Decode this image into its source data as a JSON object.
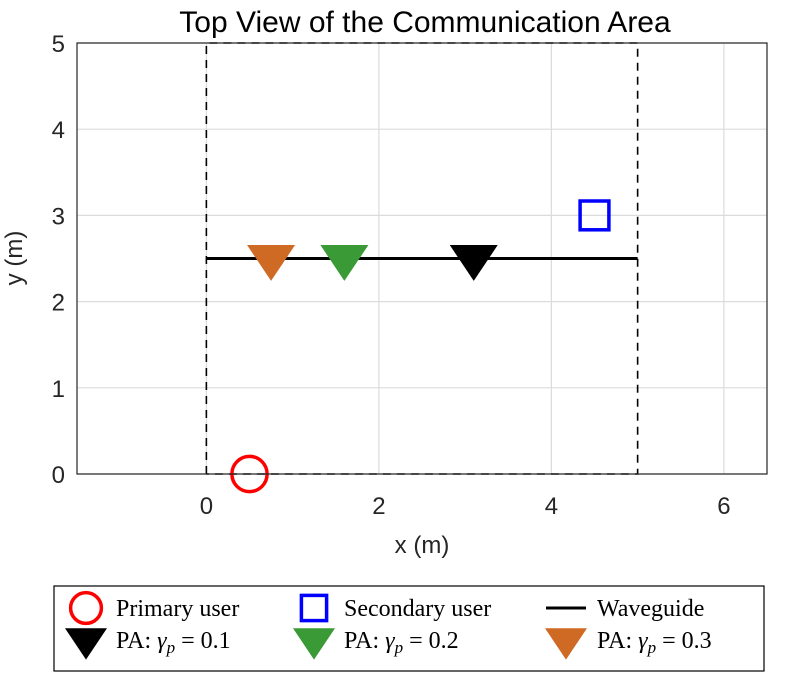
{
  "chart_data": {
    "type": "scatter",
    "title": "Top View of the Communication Area",
    "xlabel": "x (m)",
    "ylabel": "y (m)",
    "xlim": [
      -1.5,
      6.5
    ],
    "ylim": [
      0,
      5
    ],
    "xticks": [
      0,
      2,
      4,
      6
    ],
    "yticks": [
      0,
      1,
      2,
      3,
      4,
      5
    ],
    "grid": true,
    "area_boundary": {
      "x": [
        0,
        5
      ],
      "y": [
        0,
        5
      ],
      "style": "dashed"
    },
    "series": [
      {
        "name": "Primary user",
        "marker": "circle",
        "color": "#ff0000",
        "x": [
          0.5
        ],
        "y": [
          0
        ]
      },
      {
        "name": "Secondary user",
        "marker": "square",
        "color": "#0000ff",
        "x": [
          4.5
        ],
        "y": [
          3
        ]
      },
      {
        "name": "Waveguide",
        "marker": "line",
        "color": "#000000",
        "x": [
          0,
          5
        ],
        "y": [
          2.5,
          2.5
        ]
      },
      {
        "name": "PA: γp = 0.1",
        "marker": "triangle-down",
        "color": "#000000",
        "x": [
          3.1
        ],
        "y": [
          2.5
        ]
      },
      {
        "name": "PA: γp = 0.2",
        "marker": "triangle-down",
        "color": "#3a9a35",
        "x": [
          1.6
        ],
        "y": [
          2.5
        ]
      },
      {
        "name": "PA: γp = 0.3",
        "marker": "triangle-down",
        "color": "#cf6a24",
        "x": [
          0.75
        ],
        "y": [
          2.5
        ]
      }
    ],
    "legend": {
      "placement": "bottom-outside",
      "entries": [
        {
          "label": "Primary user",
          "series": 0
        },
        {
          "label": "Secondary user",
          "series": 1
        },
        {
          "label": "Waveguide",
          "series": 2
        },
        {
          "prefix": "PA: ",
          "symbol": "γ",
          "sub": "p",
          "suffix": " = 0.1",
          "series": 3
        },
        {
          "prefix": "PA: ",
          "symbol": "γ",
          "sub": "p",
          "suffix": " = 0.2",
          "series": 4
        },
        {
          "prefix": "PA: ",
          "symbol": "γ",
          "sub": "p",
          "suffix": " = 0.3",
          "series": 5
        }
      ]
    }
  }
}
